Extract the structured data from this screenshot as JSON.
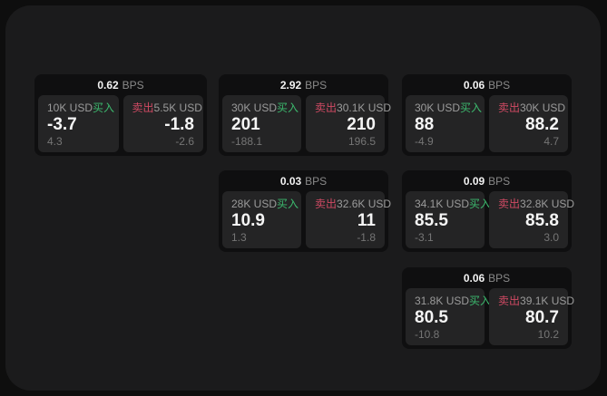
{
  "colors": {
    "buy": "#3cba6e",
    "sell": "#cf4a63",
    "panel_bg": "#1b1b1c",
    "card_bg": "#0f0f10",
    "tile_bg": "#242425"
  },
  "labels": {
    "bps_unit": "BPS",
    "buy": "买入",
    "sell": "卖出"
  },
  "cards": [
    {
      "bps": "0.62",
      "buy": {
        "amount": "10K USD",
        "price": "-3.7",
        "delta": "4.3"
      },
      "sell": {
        "amount": "5.5K USD",
        "price": "-1.8",
        "delta": "-2.6"
      }
    },
    {
      "bps": "2.92",
      "buy": {
        "amount": "30K USD",
        "price": "201",
        "delta": "-188.1"
      },
      "sell": {
        "amount": "30.1K USD",
        "price": "210",
        "delta": "196.5"
      }
    },
    {
      "bps": "0.06",
      "buy": {
        "amount": "30K USD",
        "price": "88",
        "delta": "-4.9"
      },
      "sell": {
        "amount": "30K USD",
        "price": "88.2",
        "delta": "4.7"
      }
    },
    {
      "bps": "0.03",
      "buy": {
        "amount": "28K USD",
        "price": "10.9",
        "delta": "1.3"
      },
      "sell": {
        "amount": "32.6K USD",
        "price": "11",
        "delta": "-1.8"
      }
    },
    {
      "bps": "0.09",
      "buy": {
        "amount": "34.1K USD",
        "price": "85.5",
        "delta": "-3.1"
      },
      "sell": {
        "amount": "32.8K USD",
        "price": "85.8",
        "delta": "3.0"
      }
    },
    {
      "bps": "0.06",
      "buy": {
        "amount": "31.8K USD",
        "price": "80.5",
        "delta": "-10.8"
      },
      "sell": {
        "amount": "39.1K USD",
        "price": "80.7",
        "delta": "10.2"
      }
    }
  ]
}
